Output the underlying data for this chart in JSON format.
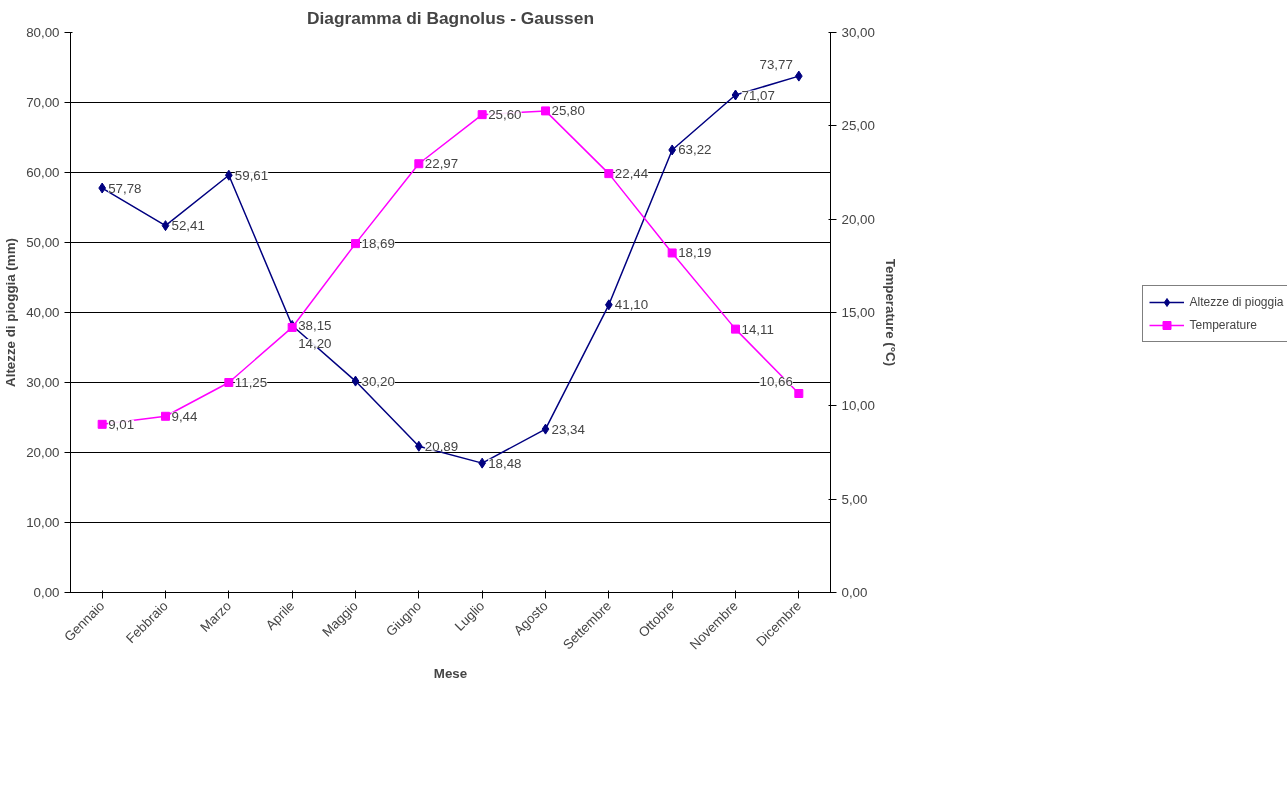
{
  "chart_data": {
    "type": "line",
    "title": "Diagramma di Bagnolus - Gaussen",
    "xlabel": "Mese",
    "ylabel": "Altezze di pioggia (mm)",
    "y2label": "Temperature (°C)",
    "categories": [
      "Gennaio",
      "Febbraio",
      "Marzo",
      "Aprile",
      "Maggio",
      "Giugno",
      "Luglio",
      "Agosto",
      "Settembre",
      "Ottobre",
      "Novembre",
      "Dicembre"
    ],
    "series": [
      {
        "name": "Altezze di pioggia",
        "color": "#000080",
        "marker": "diamond",
        "values": [
          57.78,
          52.41,
          59.61,
          38.15,
          30.2,
          20.89,
          18.48,
          23.34,
          41.1,
          63.22,
          71.07,
          73.77
        ],
        "value_labels": [
          "57,78",
          "52,41",
          "59,61",
          "38,15",
          "30,20",
          "20,89",
          "18,48",
          "23,34",
          "41,10",
          "63,22",
          "71,07",
          "73,77"
        ]
      },
      {
        "name": "Temperature",
        "color": "#ff00ff",
        "marker": "square",
        "axis": "y2",
        "values": [
          9.01,
          9.44,
          11.25,
          14.2,
          18.69,
          22.97,
          25.6,
          25.8,
          22.44,
          18.19,
          14.11,
          10.66
        ],
        "value_labels": [
          "9,01",
          "9,44",
          "11,25",
          "14,20",
          "18,69",
          "22,97",
          "25,60",
          "25,80",
          "22,44",
          "18,19",
          "14,11",
          "10,66"
        ]
      }
    ],
    "ylim": [
      0,
      80
    ],
    "yticks": [
      {
        "value": 0,
        "label": "0,00"
      },
      {
        "value": 10,
        "label": "10,00"
      },
      {
        "value": 20,
        "label": "20,00"
      },
      {
        "value": 30,
        "label": "30,00"
      },
      {
        "value": 40,
        "label": "40,00"
      },
      {
        "value": 50,
        "label": "50,00"
      },
      {
        "value": 60,
        "label": "60,00"
      },
      {
        "value": 70,
        "label": "70,00"
      },
      {
        "value": 80,
        "label": "80,00"
      }
    ],
    "y2lim": [
      0,
      30
    ],
    "y2ticks": [
      {
        "value": 0,
        "label": "0,00"
      },
      {
        "value": 5,
        "label": "5,00"
      },
      {
        "value": 10,
        "label": "10,00"
      },
      {
        "value": 15,
        "label": "15,00"
      },
      {
        "value": 20,
        "label": "20,00"
      },
      {
        "value": 25,
        "label": "25,00"
      },
      {
        "value": 30,
        "label": "30,00"
      }
    ],
    "grid": "y",
    "legend": "right"
  }
}
